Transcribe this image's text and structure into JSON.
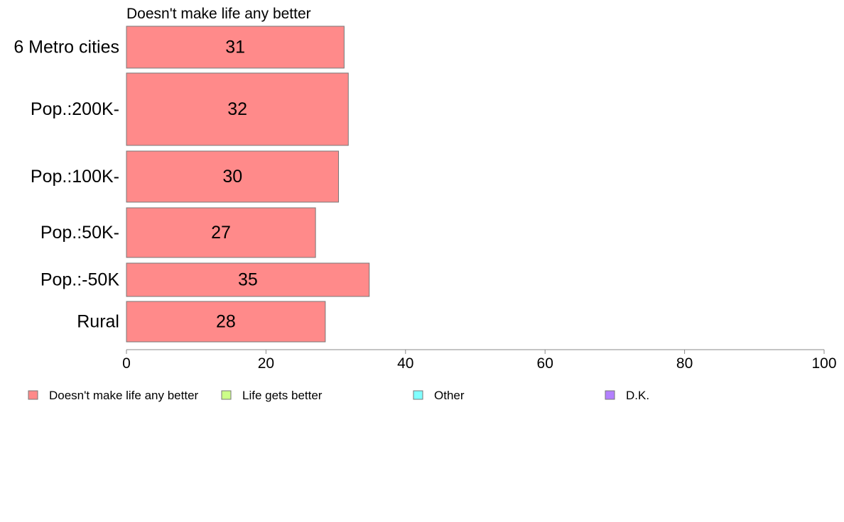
{
  "chart_data": {
    "type": "bar",
    "orientation": "horizontal",
    "title": "Doesn't make life any better",
    "categories": [
      "6 Metro cities",
      "Pop.:200K-",
      "Pop.:100K-",
      "Pop.:50K-",
      "Pop.:-50K",
      "Rural"
    ],
    "series": [
      {
        "name": "Doesn't make life any better",
        "values": [
          31.2,
          31.8,
          30.4,
          27.1,
          34.8,
          28.5
        ],
        "labels": [
          "31",
          "32",
          "30",
          "27",
          "35",
          "28"
        ],
        "color": "#ff8a8a"
      }
    ],
    "xlim": [
      0,
      100
    ],
    "xticks": [
      "0",
      "20",
      "40",
      "60",
      "80",
      "100"
    ],
    "grid": false,
    "legend_position": "bottom",
    "legend": [
      {
        "label": "Doesn't make life any better",
        "color": "#ff8a8a"
      },
      {
        "label": "Life gets better",
        "color": "#ccff88"
      },
      {
        "label": "Other",
        "color": "#80ffff"
      },
      {
        "label": "D.K.",
        "color": "#b380ff"
      }
    ]
  }
}
